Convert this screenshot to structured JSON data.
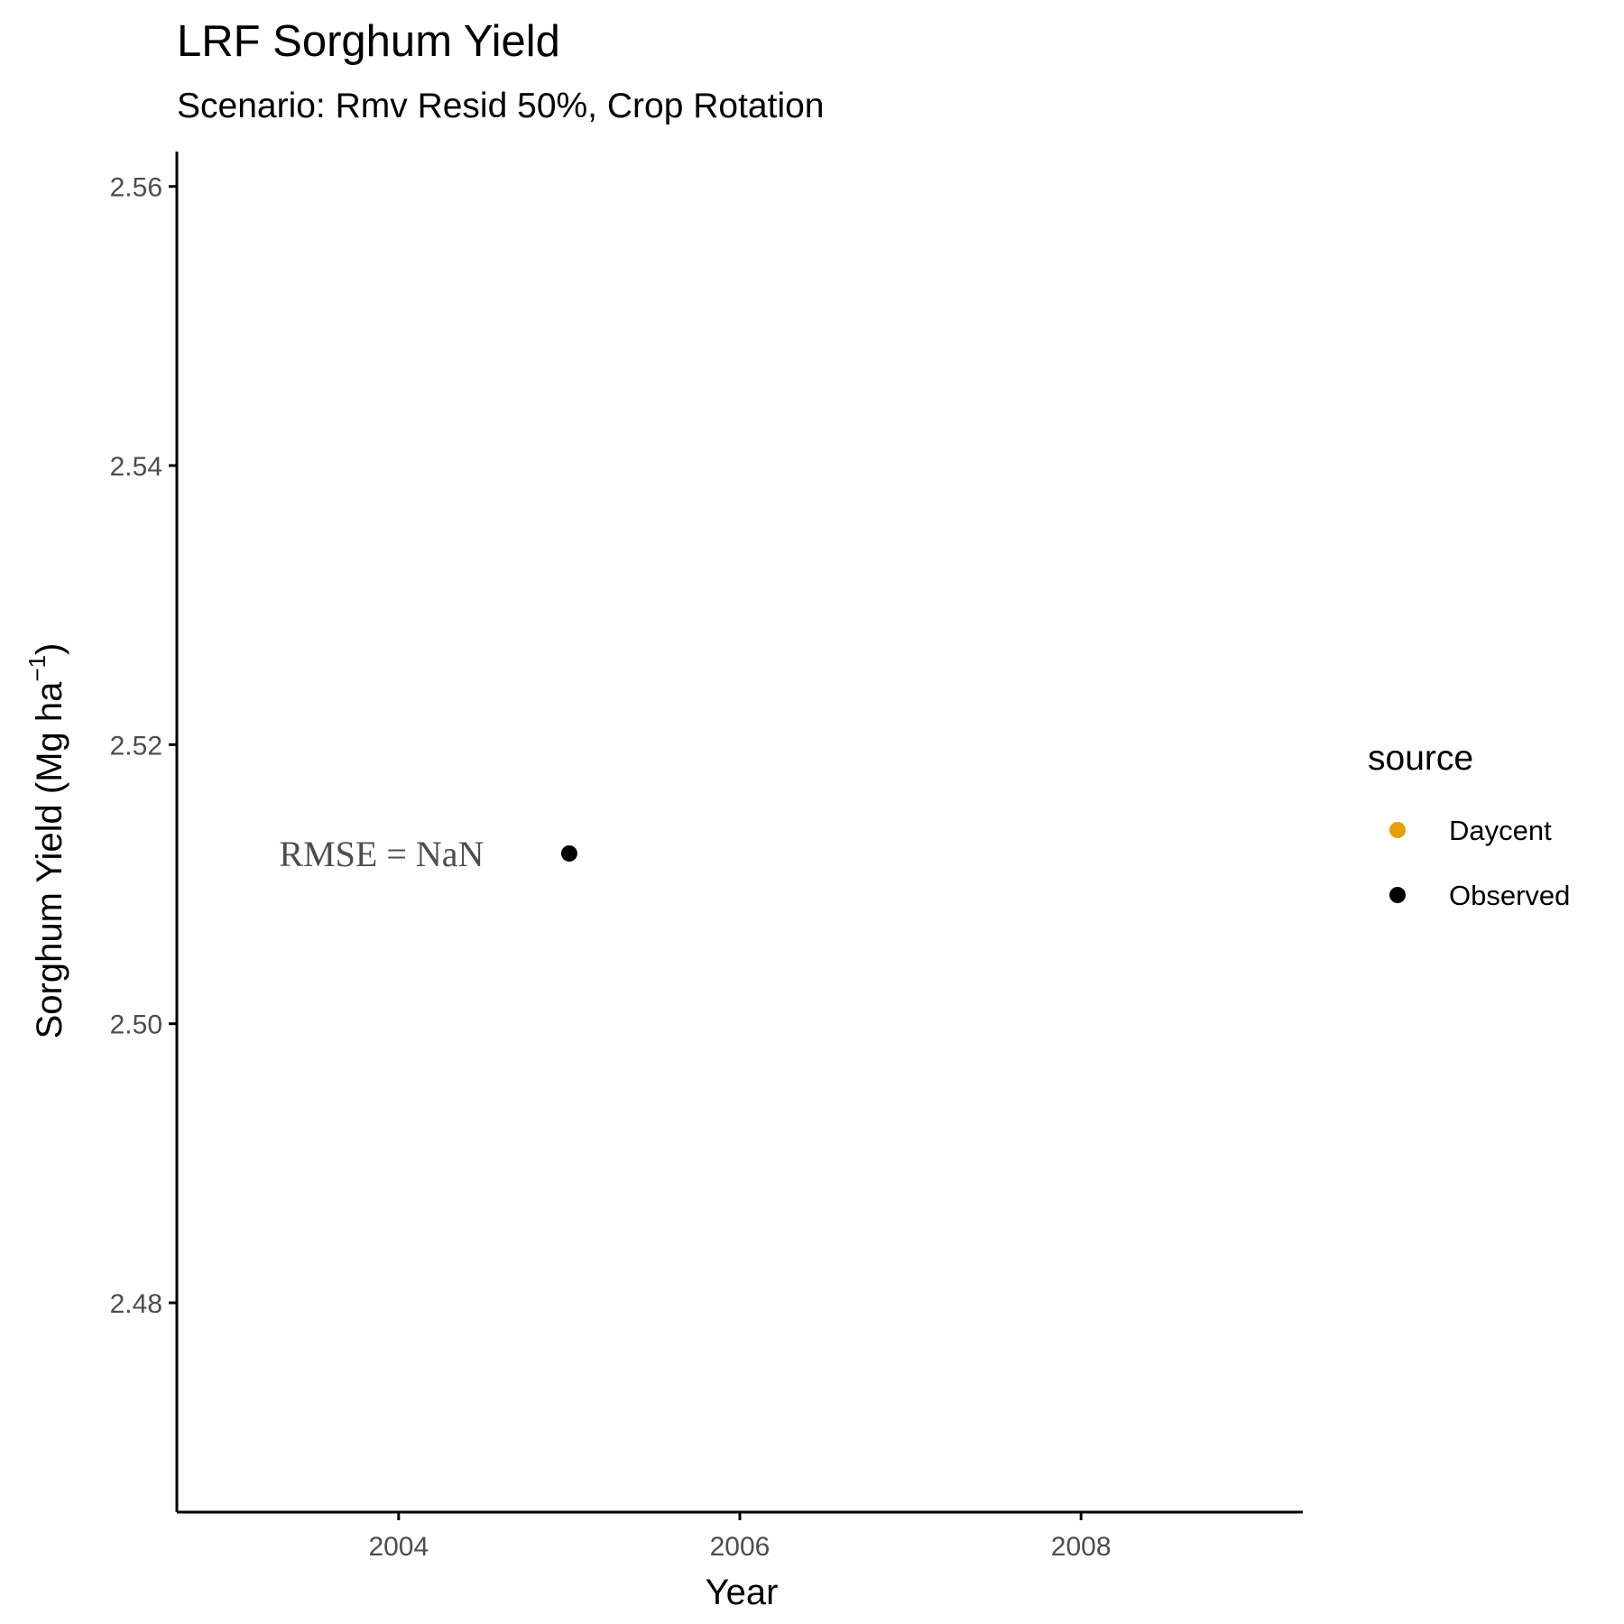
{
  "chart_data": {
    "type": "scatter",
    "title": "LRF Sorghum Yield",
    "subtitle": "Scenario: Rmv Resid 50%, Crop Rotation",
    "xlabel": "Year",
    "ylabel_main": "Sorghum Yield (Mg ha",
    "ylabel_sup": "−1",
    "ylabel_close": ")",
    "xlim": [
      2002.7,
      2009.3
    ],
    "ylim": [
      2.465,
      2.5625
    ],
    "x_ticks": [
      {
        "value": 2004,
        "label": "2004"
      },
      {
        "value": 2006,
        "label": "2006"
      },
      {
        "value": 2008,
        "label": "2008"
      }
    ],
    "y_ticks": [
      {
        "value": 2.48,
        "label": "2.48"
      },
      {
        "value": 2.5,
        "label": "2.50"
      },
      {
        "value": 2.52,
        "label": "2.52"
      },
      {
        "value": 2.54,
        "label": "2.54"
      },
      {
        "value": 2.56,
        "label": "2.56"
      }
    ],
    "grid": false,
    "legend_position": "right",
    "legend": {
      "title": "source",
      "entries": [
        {
          "label": "Daycent",
          "color": "#E69F00"
        },
        {
          "label": "Observed",
          "color": "#000000"
        }
      ]
    },
    "series": [
      {
        "name": "Observed",
        "color": "#000000",
        "points": [
          {
            "x": 2005,
            "y": 2.5122
          }
        ]
      },
      {
        "name": "Daycent",
        "color": "#E69F00",
        "points": []
      }
    ],
    "annotations": [
      {
        "text": "RMSE = NaN",
        "x": 2003.9,
        "y": 2.5122
      }
    ]
  }
}
